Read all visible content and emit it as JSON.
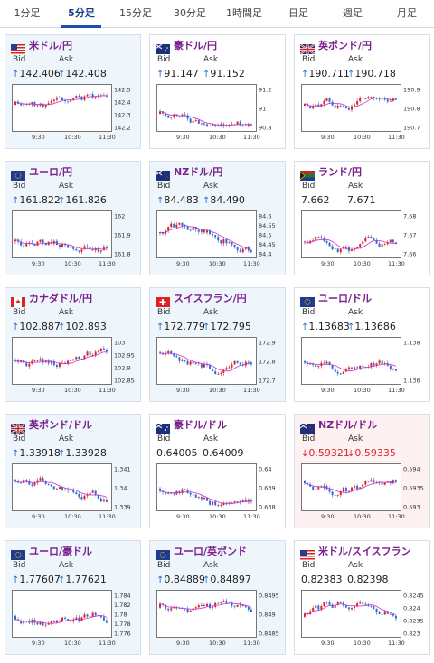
{
  "tabs": [
    "1分足",
    "5分足",
    "15分足",
    "30分足",
    "1時間足",
    "日足",
    "週足",
    "月足"
  ],
  "active_tab": 1,
  "labels": {
    "bid": "Bid",
    "ask": "Ask"
  },
  "colors": {
    "up": "#2a6ed1",
    "down": "#d7262a",
    "ma": "#cc33cc",
    "pair": "#7a1f8c"
  },
  "cards": [
    {
      "pair": "米ドル/円",
      "flag": "us",
      "bid": "142.406",
      "ask": "142.408",
      "bid_dir": "up",
      "ask_dir": "up",
      "bg": "blue",
      "ticks": [
        "142.5",
        "142.4",
        "142.3",
        "142.2"
      ],
      "times": [
        "9:30",
        "10:30",
        "11:30"
      ]
    },
    {
      "pair": "豪ドル/円",
      "flag": "au",
      "bid": "91.147",
      "ask": "91.152",
      "bid_dir": "up",
      "ask_dir": "up",
      "bg": "white",
      "ticks": [
        "91.2",
        "91",
        "90.8"
      ],
      "times": [
        "9:30",
        "10:30",
        "11:30"
      ]
    },
    {
      "pair": "英ポンド/円",
      "flag": "gb",
      "bid": "190.711",
      "ask": "190.718",
      "bid_dir": "up",
      "ask_dir": "up",
      "bg": "white",
      "ticks": [
        "190.9",
        "190.8",
        "190.7"
      ],
      "times": [
        "9:30",
        "10:30",
        "11:30"
      ]
    },
    {
      "pair": "ユーロ/円",
      "flag": "eu",
      "bid": "161.822",
      "ask": "161.826",
      "bid_dir": "up",
      "ask_dir": "up",
      "bg": "blue",
      "ticks": [
        "162",
        "161.9",
        "161.8"
      ],
      "times": [
        "9:30",
        "10:30",
        "11:30"
      ]
    },
    {
      "pair": "NZドル/円",
      "flag": "nz",
      "bid": "84.483",
      "ask": "84.490",
      "bid_dir": "up",
      "ask_dir": "up",
      "bg": "blue",
      "ticks": [
        "84.6",
        "84.55",
        "84.5",
        "84.45",
        "84.4"
      ],
      "times": [
        "9:30",
        "10:30",
        "11:30"
      ]
    },
    {
      "pair": "ランド/円",
      "flag": "za",
      "bid": "7.662",
      "ask": "7.671",
      "bid_dir": "none",
      "ask_dir": "none",
      "bg": "white",
      "ticks": [
        "7.68",
        "7.67",
        "7.66"
      ],
      "times": [
        "9:30",
        "10:30",
        "11:30"
      ]
    },
    {
      "pair": "カナダドル/円",
      "flag": "ca",
      "bid": "102.887",
      "ask": "102.893",
      "bid_dir": "up",
      "ask_dir": "up",
      "bg": "blue",
      "ticks": [
        "103",
        "102.95",
        "102.9",
        "102.85"
      ],
      "times": [
        "9:30",
        "10:30",
        "11:30"
      ]
    },
    {
      "pair": "スイスフラン/円",
      "flag": "ch",
      "bid": "172.779",
      "ask": "172.795",
      "bid_dir": "up",
      "ask_dir": "up",
      "bg": "blue",
      "ticks": [
        "172.9",
        "172.8",
        "172.7"
      ],
      "times": [
        "9:30",
        "10:30",
        "11:30"
      ]
    },
    {
      "pair": "ユーロ/ドル",
      "flag": "eu",
      "bid": "1.13683",
      "ask": "1.13686",
      "bid_dir": "up",
      "ask_dir": "up",
      "bg": "white",
      "ticks": [
        "1.138",
        "1.136"
      ],
      "times": [
        "9:30",
        "10:30",
        "11:30"
      ]
    },
    {
      "pair": "英ポンド/ドル",
      "flag": "gb",
      "bid": "1.33918",
      "ask": "1.33928",
      "bid_dir": "up",
      "ask_dir": "up",
      "bg": "blue",
      "ticks": [
        "1.341",
        "1.34",
        "1.339"
      ],
      "times": [
        "9:30",
        "10:30",
        "11:30"
      ]
    },
    {
      "pair": "豪ドル/ドル",
      "flag": "au",
      "bid": "0.64005",
      "ask": "0.64009",
      "bid_dir": "none",
      "ask_dir": "none",
      "bg": "white",
      "ticks": [
        "0.64",
        "0.639",
        "0.638"
      ],
      "times": [
        "9:30",
        "10:30",
        "11:30"
      ]
    },
    {
      "pair": "NZドル/ドル",
      "flag": "nz",
      "bid": "0.59321",
      "ask": "0.59335",
      "bid_dir": "down",
      "ask_dir": "down",
      "bg": "pink",
      "ticks": [
        "0.594",
        "0.5935",
        "0.593"
      ],
      "times": [
        "9:30",
        "10:30",
        "11:30"
      ]
    },
    {
      "pair": "ユーロ/豪ドル",
      "flag": "eu",
      "bid": "1.77607",
      "ask": "1.77621",
      "bid_dir": "up",
      "ask_dir": "up",
      "bg": "blue",
      "ticks": [
        "1.784",
        "1.782",
        "1.78",
        "1.778",
        "1.776"
      ],
      "times": [
        "9:30",
        "10:30",
        "11:30"
      ]
    },
    {
      "pair": "ユーロ/英ポンド",
      "flag": "eu",
      "bid": "0.84889",
      "ask": "0.84897",
      "bid_dir": "up",
      "ask_dir": "up",
      "bg": "blue",
      "ticks": [
        "0.8495",
        "0.849",
        "0.8485"
      ],
      "times": [
        "9:30",
        "10:30",
        "11:30"
      ]
    },
    {
      "pair": "米ドル/スイスフラン",
      "flag": "us",
      "bid": "0.82383",
      "ask": "0.82398",
      "bid_dir": "none",
      "ask_dir": "none",
      "bg": "white",
      "ticks": [
        "0.8245",
        "0.824",
        "0.8235",
        "0.823"
      ],
      "times": [
        "9:30",
        "10:30",
        "11:30"
      ]
    }
  ]
}
